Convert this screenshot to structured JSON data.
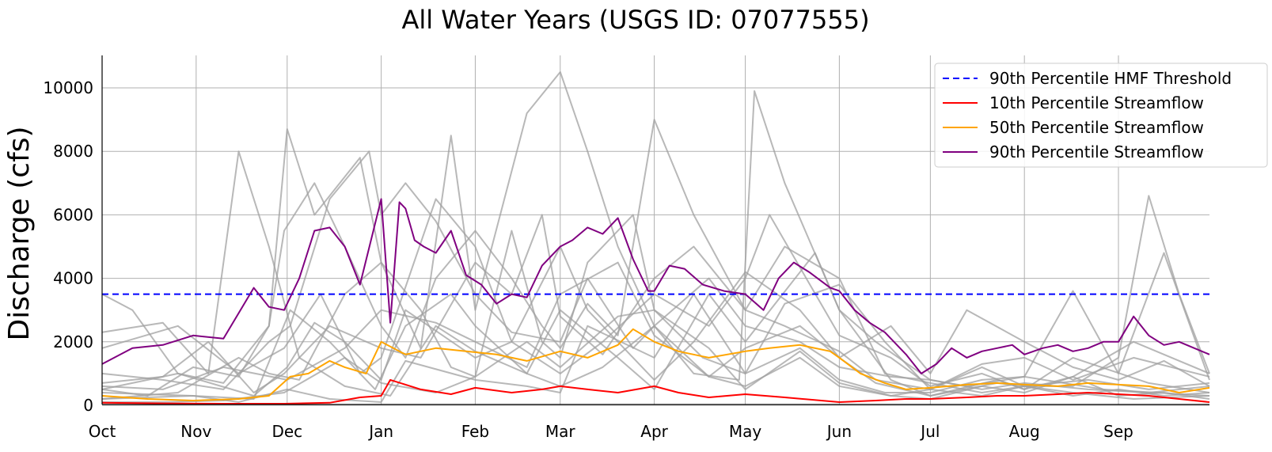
{
  "chart_data": {
    "type": "line",
    "title": "All Water Years (USGS ID: 07077555)",
    "xlabel": "",
    "ylabel": "Discharge (cfs)",
    "x_unit": "day of water year (Oct 1 = 0)",
    "xlim": [
      0,
      365
    ],
    "ylim": [
      -300,
      11000
    ],
    "grid": true,
    "legend_position": "top-right",
    "xticks": [
      {
        "label": "Oct",
        "x": 0
      },
      {
        "label": "Nov",
        "x": 31
      },
      {
        "label": "Dec",
        "x": 61
      },
      {
        "label": "Jan",
        "x": 92
      },
      {
        "label": "Feb",
        "x": 123
      },
      {
        "label": "Mar",
        "x": 151
      },
      {
        "label": "Apr",
        "x": 182
      },
      {
        "label": "May",
        "x": 212
      },
      {
        "label": "Jun",
        "x": 243
      },
      {
        "label": "Jul",
        "x": 273
      },
      {
        "label": "Aug",
        "x": 304
      },
      {
        "label": "Sep",
        "x": 335
      }
    ],
    "yticks": [
      0,
      2000,
      4000,
      6000,
      8000,
      10000
    ],
    "threshold": {
      "name": "90th Percentile HMF Threshold",
      "value": 3500,
      "color": "#0000ff",
      "style": "dashed"
    },
    "series": [
      {
        "name": "10th Percentile Streamflow",
        "color": "#ff0000",
        "x": [
          0,
          20,
          40,
          60,
          75,
          85,
          92,
          95,
          105,
          115,
          123,
          135,
          145,
          151,
          160,
          170,
          182,
          190,
          200,
          212,
          225,
          243,
          255,
          265,
          273,
          285,
          295,
          304,
          315,
          325,
          335,
          345,
          355,
          365
        ],
        "y": [
          80,
          60,
          50,
          50,
          80,
          250,
          300,
          800,
          500,
          350,
          550,
          400,
          500,
          600,
          500,
          400,
          600,
          400,
          250,
          350,
          250,
          100,
          150,
          200,
          200,
          250,
          300,
          300,
          350,
          400,
          350,
          300,
          200,
          100
        ]
      },
      {
        "name": "50th Percentile Streamflow",
        "color": "#ffa500",
        "x": [
          0,
          15,
          30,
          45,
          55,
          62,
          68,
          75,
          80,
          87,
          92,
          100,
          110,
          120,
          130,
          140,
          151,
          160,
          170,
          175,
          182,
          190,
          200,
          212,
          220,
          230,
          240,
          243,
          250,
          258,
          265,
          273,
          285,
          295,
          304,
          315,
          325,
          335,
          345,
          355,
          365
        ],
        "y": [
          300,
          200,
          150,
          200,
          300,
          900,
          1000,
          1400,
          1200,
          1000,
          2000,
          1600,
          1800,
          1700,
          1600,
          1400,
          1700,
          1500,
          1900,
          2400,
          2000,
          1700,
          1500,
          1700,
          1800,
          1900,
          1700,
          1500,
          1000,
          700,
          500,
          550,
          650,
          700,
          650,
          600,
          700,
          650,
          600,
          400,
          550
        ]
      },
      {
        "name": "90th Percentile Streamflow",
        "color": "#800080",
        "x": [
          0,
          10,
          20,
          30,
          40,
          50,
          55,
          60,
          65,
          70,
          75,
          80,
          85,
          92,
          95,
          98,
          100,
          103,
          106,
          110,
          115,
          120,
          125,
          130,
          135,
          140,
          145,
          151,
          155,
          160,
          165,
          170,
          175,
          180,
          182,
          187,
          192,
          198,
          205,
          212,
          218,
          223,
          228,
          233,
          240,
          243,
          248,
          253,
          258,
          265,
          270,
          275,
          280,
          285,
          290,
          295,
          300,
          304,
          310,
          315,
          320,
          325,
          330,
          335,
          340,
          345,
          350,
          355,
          360,
          365
        ],
        "y": [
          1300,
          1800,
          1900,
          2200,
          2100,
          3700,
          3100,
          3000,
          4000,
          5500,
          5600,
          5000,
          3800,
          6500,
          2600,
          6400,
          6200,
          5200,
          5000,
          4800,
          5500,
          4100,
          3800,
          3200,
          3500,
          3400,
          4400,
          5000,
          5200,
          5600,
          5400,
          5900,
          4600,
          3600,
          3600,
          4400,
          4300,
          3800,
          3600,
          3500,
          3000,
          4000,
          4500,
          4200,
          3700,
          3600,
          3000,
          2600,
          2300,
          1600,
          1000,
          1300,
          1800,
          1500,
          1700,
          1800,
          1900,
          1600,
          1800,
          1900,
          1700,
          1800,
          2000,
          2000,
          2800,
          2200,
          1900,
          2000,
          1800,
          1600
        ]
      }
    ],
    "background_series_color": "#a0a0a0",
    "background_series": [
      {
        "x": [
          0,
          20,
          35,
          45,
          55,
          65,
          80,
          95,
          110,
          123,
          140,
          151,
          165,
          182,
          200,
          212,
          230,
          243,
          260,
          273,
          290,
          304,
          320,
          335,
          350,
          365
        ],
        "y": [
          2300,
          2600,
          1000,
          8000,
          5000,
          1500,
          600,
          300,
          2500,
          1700,
          1000,
          600,
          1200,
          2500,
          900,
          600,
          1500,
          600,
          300,
          500,
          300,
          600,
          300,
          500,
          300,
          400
        ]
      },
      {
        "x": [
          0,
          10,
          25,
          40,
          55,
          60,
          70,
          80,
          92,
          100,
          110,
          123,
          135,
          145,
          151,
          160,
          170,
          182,
          195,
          212,
          225,
          243,
          255,
          273,
          290,
          304,
          320,
          335,
          345,
          355,
          365
        ],
        "y": [
          3500,
          3000,
          1000,
          700,
          2500,
          5500,
          7000,
          5000,
          2500,
          1500,
          4000,
          5500,
          4000,
          2500,
          1800,
          3200,
          2200,
          9000,
          6000,
          3000,
          2500,
          1700,
          800,
          500,
          1200,
          600,
          600,
          1500,
          6600,
          3500,
          1000
        ]
      },
      {
        "x": [
          0,
          15,
          30,
          45,
          55,
          61,
          70,
          85,
          92,
          105,
          115,
          123,
          140,
          151,
          160,
          170,
          182,
          195,
          210,
          215,
          225,
          243,
          255,
          273,
          285,
          304,
          320,
          335,
          350,
          365
        ],
        "y": [
          500,
          300,
          1200,
          900,
          2500,
          8700,
          6000,
          7800,
          4500,
          1800,
          8500,
          3000,
          9200,
          10500,
          8000,
          5000,
          2500,
          1000,
          800,
          9900,
          7000,
          3000,
          2000,
          800,
          600,
          900,
          3600,
          1000,
          4800,
          800
        ]
      },
      {
        "x": [
          0,
          20,
          40,
          55,
          62,
          75,
          88,
          92,
          100,
          110,
          123,
          135,
          151,
          160,
          175,
          182,
          200,
          212,
          230,
          243,
          260,
          273,
          290,
          304,
          325,
          345,
          365
        ],
        "y": [
          1000,
          800,
          500,
          2000,
          2500,
          6500,
          8000,
          6000,
          7000,
          5800,
          3500,
          2300,
          2000,
          4000,
          1800,
          2500,
          4000,
          2500,
          2000,
          1200,
          900,
          800,
          500,
          700,
          500,
          400,
          600
        ]
      },
      {
        "x": [
          0,
          25,
          45,
          55,
          65,
          80,
          92,
          105,
          115,
          123,
          135,
          145,
          151,
          160,
          175,
          182,
          198,
          212,
          225,
          243,
          258,
          273,
          290,
          304,
          320,
          340,
          365
        ],
        "y": [
          200,
          400,
          1500,
          1000,
          800,
          3500,
          4500,
          3000,
          1200,
          900,
          5500,
          2000,
          1500,
          4500,
          6000,
          3000,
          1500,
          1000,
          3200,
          3800,
          2000,
          500,
          1300,
          1500,
          800,
          1500,
          900
        ]
      },
      {
        "x": [
          0,
          30,
          50,
          62,
          75,
          90,
          100,
          115,
          123,
          140,
          151,
          170,
          182,
          200,
          212,
          235,
          243,
          260,
          273,
          295,
          304,
          320,
          340,
          365
        ],
        "y": [
          400,
          300,
          200,
          3000,
          2000,
          500,
          2500,
          3500,
          2500,
          1000,
          3000,
          1500,
          500,
          3500,
          2000,
          4800,
          3000,
          800,
          300,
          700,
          600,
          400,
          200,
          300
        ]
      },
      {
        "x": [
          0,
          20,
          35,
          50,
          60,
          75,
          92,
          105,
          123,
          135,
          145,
          151,
          165,
          182,
          195,
          212,
          225,
          243,
          258,
          273,
          290,
          304,
          325,
          345,
          365
        ],
        "y": [
          700,
          900,
          2000,
          400,
          1000,
          2500,
          1800,
          1500,
          4500,
          3500,
          6000,
          2800,
          1600,
          4000,
          5000,
          3000,
          5000,
          4000,
          1000,
          700,
          400,
          600,
          800,
          500,
          700
        ]
      },
      {
        "x": [
          0,
          20,
          40,
          60,
          80,
          92,
          110,
          123,
          140,
          151,
          170,
          182,
          200,
          212,
          230,
          243,
          260,
          273,
          290,
          304,
          320,
          335,
          350,
          365
        ],
        "y": [
          100,
          100,
          150,
          400,
          1500,
          700,
          400,
          900,
          2000,
          1200,
          2800,
          3000,
          1800,
          500,
          1700,
          700,
          300,
          200,
          600,
          400,
          900,
          300,
          400,
          200
        ]
      },
      {
        "x": [
          0,
          25,
          45,
          60,
          72,
          85,
          92,
          110,
          123,
          135,
          151,
          165,
          182,
          200,
          212,
          220,
          243,
          260,
          273,
          290,
          304,
          320,
          340,
          365
        ],
        "y": [
          1800,
          2500,
          1000,
          1800,
          3500,
          1000,
          1500,
          6500,
          5000,
          2000,
          1000,
          2000,
          3500,
          2500,
          4000,
          6000,
          2200,
          1500,
          600,
          1000,
          500,
          900,
          2000,
          1000
        ]
      },
      {
        "x": [
          0,
          30,
          45,
          61,
          75,
          92,
          100,
          123,
          140,
          151,
          160,
          182,
          195,
          212,
          230,
          243,
          258,
          273,
          290,
          304,
          330,
          365
        ],
        "y": [
          200,
          300,
          100,
          500,
          200,
          100,
          1400,
          800,
          600,
          400,
          2500,
          1500,
          3500,
          1000,
          1800,
          800,
          400,
          400,
          800,
          900,
          500,
          300
        ]
      },
      {
        "x": [
          0,
          20,
          40,
          61,
          80,
          92,
          110,
          123,
          140,
          151,
          170,
          182,
          200,
          212,
          230,
          243,
          255,
          273,
          295,
          304,
          320,
          345,
          365
        ],
        "y": [
          600,
          500,
          1200,
          800,
          1800,
          3000,
          2600,
          2000,
          1200,
          3500,
          4500,
          2200,
          900,
          1800,
          2500,
          1500,
          700,
          300,
          800,
          500,
          1500,
          700,
          400
        ]
      },
      {
        "x": [
          0,
          25,
          50,
          61,
          70,
          80,
          92,
          100,
          123,
          135,
          151,
          160,
          182,
          195,
          212,
          230,
          243,
          260,
          273,
          285,
          304,
          320,
          335,
          350,
          365
        ],
        "y": [
          500,
          1000,
          300,
          1200,
          2600,
          2000,
          800,
          3000,
          1500,
          2000,
          5000,
          3000,
          800,
          2000,
          4200,
          3000,
          1500,
          2500,
          1000,
          3000,
          2000,
          1200,
          800,
          1400,
          600
        ]
      }
    ]
  },
  "legend": {
    "items": [
      {
        "label": "90th Percentile HMF Threshold",
        "color": "#0000ff",
        "style": "dashed"
      },
      {
        "label": "10th Percentile Streamflow",
        "color": "#ff0000",
        "style": "solid"
      },
      {
        "label": "50th Percentile Streamflow",
        "color": "#ffa500",
        "style": "solid"
      },
      {
        "label": "90th Percentile Streamflow",
        "color": "#800080",
        "style": "solid"
      }
    ]
  }
}
